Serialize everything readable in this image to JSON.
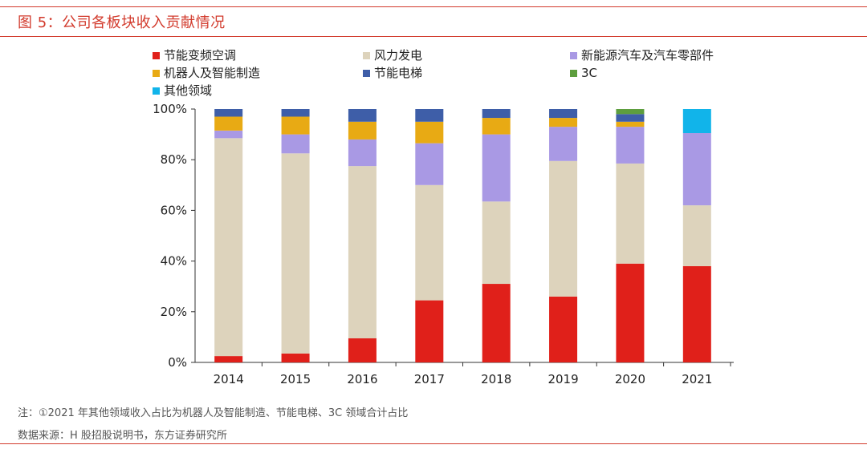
{
  "figure": {
    "title": "图 5：公司各板块收入贡献情况",
    "note": "注：①2021 年其他领域收入占比为机器人及智能制造、节能电梯、3C 领域合计占比",
    "source": "数据来源：H 股招股说明书，东方证券研究所"
  },
  "chart_data": {
    "type": "bar",
    "stacked": true,
    "title": "",
    "xlabel": "",
    "ylabel": "",
    "ylim": [
      0,
      100
    ],
    "y_ticks": [
      "0%",
      "20%",
      "40%",
      "60%",
      "80%",
      "100%"
    ],
    "categories": [
      "2014",
      "2015",
      "2016",
      "2017",
      "2018",
      "2019",
      "2020",
      "2021"
    ],
    "legend_position": "top",
    "series": [
      {
        "name": "节能变频空调",
        "color": "#e0201a",
        "values": [
          2.5,
          3.5,
          9.5,
          24.5,
          31,
          26,
          39,
          38
        ]
      },
      {
        "name": "风力发电",
        "color": "#ddd3bc",
        "values": [
          86,
          79,
          68,
          45.5,
          32.5,
          53.5,
          39.5,
          24
        ]
      },
      {
        "name": "新能源汽车及汽车零部件",
        "color": "#a999e4",
        "values": [
          3,
          7.5,
          10.5,
          16.5,
          26.5,
          13.5,
          14.5,
          28.5
        ]
      },
      {
        "name": "机器人及智能制造",
        "color": "#e8aa14",
        "values": [
          5.5,
          7,
          7,
          8.5,
          6.5,
          3.5,
          2,
          0
        ]
      },
      {
        "name": "节能电梯",
        "color": "#3e5ea8",
        "values": [
          3,
          3,
          5,
          5,
          3.5,
          3.5,
          3,
          0
        ]
      },
      {
        "name": "3C",
        "color": "#5d9e3e",
        "values": [
          0,
          0,
          0,
          0,
          0,
          0,
          2,
          0
        ]
      },
      {
        "name": "其他领域",
        "color": "#11b4ea",
        "values": [
          0,
          0,
          0,
          0,
          0,
          0,
          0,
          9.5
        ]
      }
    ]
  }
}
